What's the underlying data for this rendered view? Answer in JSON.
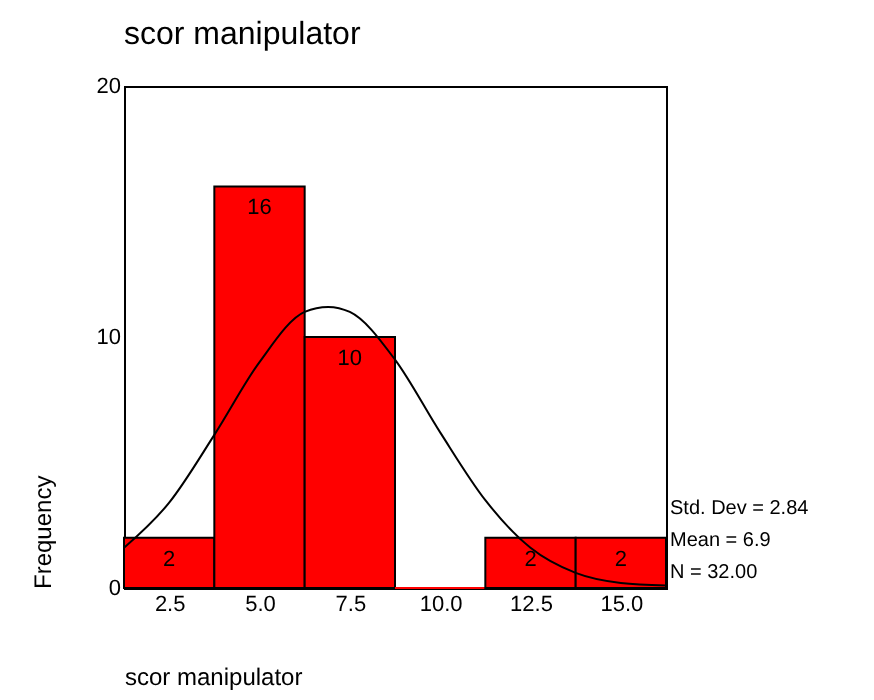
{
  "chart_data": {
    "type": "histogram",
    "title": "scor manipulator",
    "xlabel": "scor manipulator",
    "ylabel": "Frequency",
    "bins": [
      1.25,
      3.75,
      6.25,
      8.75,
      11.25,
      13.75,
      16.25
    ],
    "values": [
      2,
      16,
      10,
      0,
      2,
      2
    ],
    "value_labels": [
      "2",
      "16",
      "10",
      null,
      "2",
      "2"
    ],
    "color": "#ff0000",
    "series": [
      {
        "type": "line",
        "color": "#000000",
        "x": [
          1.25,
          2.5,
          3.75,
          5,
          6.25,
          6.9,
          7.5,
          8.75,
          10,
          11.25,
          12.5,
          13.75,
          15,
          16.25
        ],
        "values": [
          1.6,
          3.4,
          6.1,
          9.0,
          11.0,
          11.2,
          11.0,
          9.1,
          6.2,
          3.5,
          1.6,
          0.6,
          0.2,
          0.1
        ]
      }
    ],
    "xlim": [
      1.25,
      16.25
    ],
    "xticks": [
      {
        "value": 2.5,
        "label": "2.5"
      },
      {
        "value": 5,
        "label": "5.0"
      },
      {
        "value": 7.5,
        "label": "7.5"
      },
      {
        "value": 10,
        "label": "10.0"
      },
      {
        "value": 12.5,
        "label": "12.5"
      },
      {
        "value": 15,
        "label": "15.0"
      }
    ],
    "ylim": [
      0,
      20
    ],
    "yticks": [
      0,
      10,
      20
    ],
    "annotations": [
      "Std. Dev = 2.84",
      "Mean = 6.9",
      "N = 32.00"
    ]
  }
}
